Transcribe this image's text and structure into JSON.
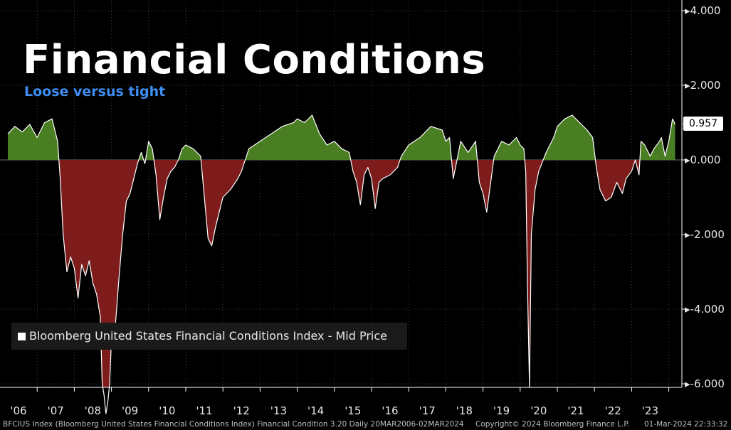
{
  "title": "Financial Conditions",
  "subtitle": "Loose versus tight",
  "legend": "Bloomberg United States Financial Conditions Index - Mid Price",
  "last_value_label": "0.957",
  "footer": {
    "left": "BFCIUS Index (Bloomberg United States Financial Conditions Index) Financial Condition 3.20  Daily 20MAR2006-02MAR2024",
    "center": "Copyright© 2024 Bloomberg Finance L.P.",
    "right": "01-Mar-2024 22:33:32"
  },
  "colors": {
    "positive_fill": "#4a7e22",
    "negative_fill": "#7e1c1c",
    "line": "#ffffff",
    "background": "#000000",
    "grid": "#3c3c3c",
    "subtitle": "#3e8ef3"
  },
  "chart_data": {
    "type": "area",
    "title": "Financial Conditions",
    "subtitle": "Loose versus tight",
    "series": [
      {
        "name": "Bloomberg United States Financial Conditions Index - Mid Price",
        "x": [
          2006.21,
          2006.4,
          2006.6,
          2006.8,
          2007.0,
          2007.2,
          2007.4,
          2007.55,
          2007.62,
          2007.7,
          2007.8,
          2007.9,
          2008.0,
          2008.1,
          2008.2,
          2008.3,
          2008.4,
          2008.5,
          2008.6,
          2008.7,
          2008.75,
          2008.8,
          2008.85,
          2008.9,
          2008.95,
          2009.0,
          2009.05,
          2009.1,
          2009.2,
          2009.3,
          2009.4,
          2009.5,
          2009.6,
          2009.7,
          2009.8,
          2009.9,
          2010.0,
          2010.1,
          2010.2,
          2010.3,
          2010.4,
          2010.5,
          2010.6,
          2010.7,
          2010.8,
          2010.9,
          2011.0,
          2011.2,
          2011.4,
          2011.5,
          2011.6,
          2011.7,
          2011.8,
          2011.9,
          2012.0,
          2012.2,
          2012.4,
          2012.5,
          2012.7,
          2013.0,
          2013.3,
          2013.6,
          2013.9,
          2014.0,
          2014.2,
          2014.4,
          2014.6,
          2014.8,
          2015.0,
          2015.2,
          2015.4,
          2015.5,
          2015.6,
          2015.7,
          2015.8,
          2015.9,
          2016.0,
          2016.1,
          2016.2,
          2016.3,
          2016.5,
          2016.7,
          2016.8,
          2017.0,
          2017.3,
          2017.6,
          2017.9,
          2018.0,
          2018.1,
          2018.2,
          2018.4,
          2018.6,
          2018.8,
          2018.9,
          2019.0,
          2019.1,
          2019.3,
          2019.5,
          2019.7,
          2019.9,
          2020.0,
          2020.1,
          2020.15,
          2020.2,
          2020.25,
          2020.3,
          2020.4,
          2020.5,
          2020.7,
          2020.9,
          2021.0,
          2021.2,
          2021.4,
          2021.6,
          2021.8,
          2021.95,
          2022.05,
          2022.15,
          2022.3,
          2022.45,
          2022.6,
          2022.75,
          2022.85,
          2023.0,
          2023.1,
          2023.2,
          2023.25,
          2023.35,
          2023.5,
          2023.6,
          2023.75,
          2023.8,
          2023.9,
          2024.0,
          2024.1,
          2024.17
        ],
        "y": [
          0.7,
          0.9,
          0.75,
          0.95,
          0.6,
          1.0,
          1.1,
          0.5,
          -0.5,
          -2.0,
          -3.0,
          -2.6,
          -2.9,
          -3.7,
          -2.8,
          -3.1,
          -2.7,
          -3.3,
          -3.6,
          -4.2,
          -6.0,
          -6.3,
          -6.8,
          -6.5,
          -6.0,
          -4.8,
          -5.0,
          -4.5,
          -3.2,
          -2.0,
          -1.1,
          -0.9,
          -0.5,
          -0.1,
          0.2,
          -0.1,
          0.5,
          0.3,
          -0.4,
          -1.6,
          -1.0,
          -0.5,
          -0.3,
          -0.2,
          0.0,
          0.3,
          0.4,
          0.3,
          0.1,
          -1.0,
          -2.1,
          -2.3,
          -1.8,
          -1.4,
          -1.0,
          -0.8,
          -0.5,
          -0.3,
          0.3,
          0.5,
          0.7,
          0.9,
          1.0,
          1.1,
          1.0,
          1.2,
          0.7,
          0.4,
          0.5,
          0.3,
          0.2,
          -0.3,
          -0.6,
          -1.2,
          -0.4,
          -0.2,
          -0.5,
          -1.3,
          -0.6,
          -0.5,
          -0.4,
          -0.2,
          0.1,
          0.4,
          0.6,
          0.9,
          0.8,
          0.5,
          0.6,
          -0.5,
          0.5,
          0.2,
          0.5,
          -0.6,
          -0.9,
          -1.4,
          0.1,
          0.5,
          0.4,
          0.6,
          0.4,
          0.3,
          -0.3,
          -3.5,
          -6.1,
          -2.0,
          -0.8,
          -0.3,
          0.2,
          0.6,
          0.9,
          1.1,
          1.2,
          1.0,
          0.8,
          0.6,
          -0.2,
          -0.8,
          -1.1,
          -1.0,
          -0.6,
          -0.9,
          -0.5,
          -0.3,
          0.0,
          -0.4,
          0.5,
          0.4,
          0.1,
          0.3,
          0.5,
          0.6,
          0.1,
          0.5,
          1.1,
          0.957
        ]
      }
    ],
    "xlabel": "",
    "ylabel": "",
    "xlim": [
      2006.0,
      2024.5
    ],
    "ylim": [
      -6.2,
      4.1
    ],
    "y_ticks": [
      {
        "value": 4,
        "label": "4.000"
      },
      {
        "value": 2,
        "label": "2.000"
      },
      {
        "value": 0,
        "label": "0.000"
      },
      {
        "value": -2,
        "label": "-2.000"
      },
      {
        "value": -4,
        "label": "-4.000"
      },
      {
        "value": -6,
        "label": "-6.000"
      }
    ],
    "x_ticks": [
      {
        "value": 2006,
        "label": "'06"
      },
      {
        "value": 2007,
        "label": "'07"
      },
      {
        "value": 2008,
        "label": "'08"
      },
      {
        "value": 2009,
        "label": "'09"
      },
      {
        "value": 2010,
        "label": "'10"
      },
      {
        "value": 2011,
        "label": "'11"
      },
      {
        "value": 2012,
        "label": "'12"
      },
      {
        "value": 2013,
        "label": "'13"
      },
      {
        "value": 2014,
        "label": "'14"
      },
      {
        "value": 2015,
        "label": "'15"
      },
      {
        "value": 2016,
        "label": "'16"
      },
      {
        "value": 2017,
        "label": "'17"
      },
      {
        "value": 2018,
        "label": "'18"
      },
      {
        "value": 2019,
        "label": "'19"
      },
      {
        "value": 2020,
        "label": "'20"
      },
      {
        "value": 2021,
        "label": "'21"
      },
      {
        "value": 2022,
        "label": "'22"
      },
      {
        "value": 2023,
        "label": "'23"
      }
    ],
    "last_value": 0.957,
    "legend_position": "bottom-left",
    "grid": true
  }
}
